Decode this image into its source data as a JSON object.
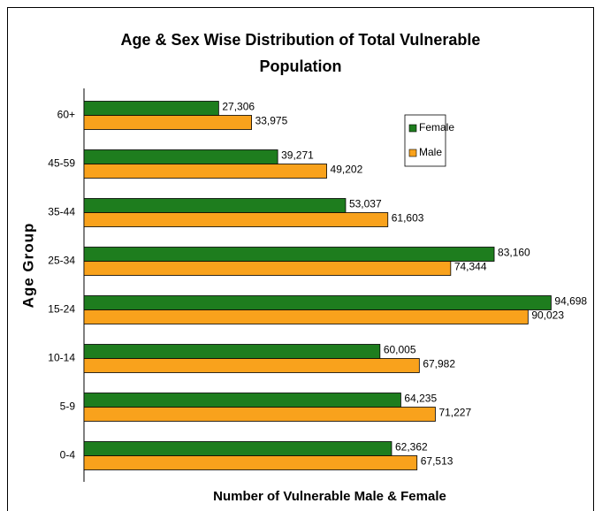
{
  "chart_data": {
    "type": "hbar",
    "title": "Age & Sex Wise Distribution of Total Vulnerable Population",
    "xlabel": "Number of Vulnerable Male & Female",
    "ylabel": "Age Group",
    "categories": [
      "0-4",
      "5-9",
      "10-14",
      "15-24",
      "25-34",
      "35-44",
      "45-59",
      "60+"
    ],
    "series": [
      {
        "name": "Female",
        "color": "#1e7d1e",
        "values": [
          62362,
          64235,
          60005,
          94698,
          83160,
          53037,
          39271,
          27306
        ],
        "value_labels": [
          "62,362",
          "64,235",
          "60,005",
          "94,698",
          "83,160",
          "53,037",
          "39,271",
          "27,306"
        ]
      },
      {
        "name": "Male",
        "color": "#f9a21c",
        "values": [
          67513,
          71227,
          67982,
          90023,
          74344,
          61603,
          49202,
          33975
        ],
        "value_labels": [
          "67,513",
          "71,227",
          "67,982",
          "90,023",
          "74,344",
          "61,603",
          "49,202",
          "33,975"
        ]
      }
    ],
    "xlim": [
      0,
      100000
    ],
    "legend": "upper right"
  }
}
